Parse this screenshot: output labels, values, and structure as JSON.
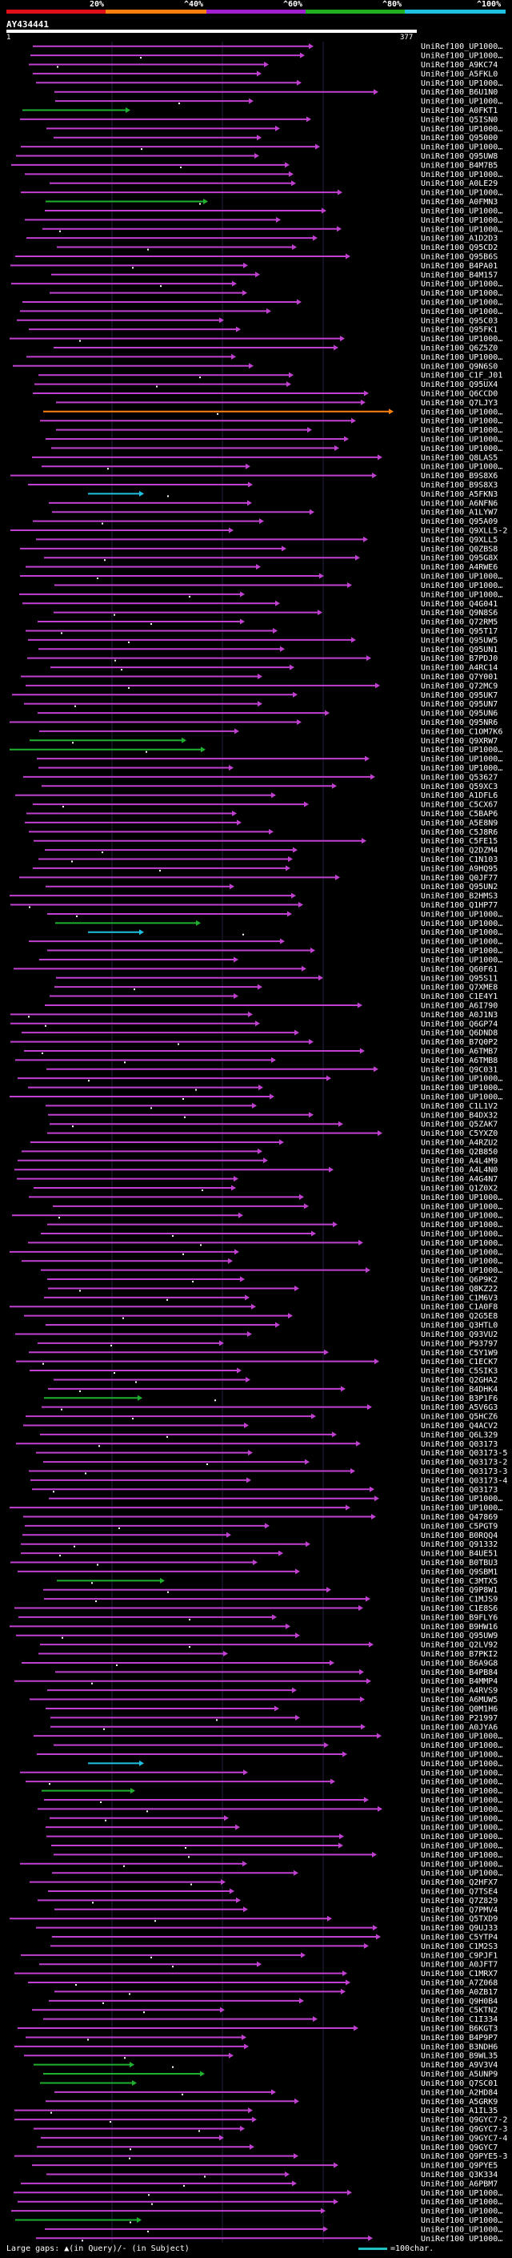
{
  "legend": {
    "labels": [
      "20%",
      "^40%",
      "^60%",
      "^80%",
      "^100%"
    ],
    "colors": [
      "#e0101a",
      "#ff8010",
      "#a020d0",
      "#20b020",
      "#20c0e0"
    ]
  },
  "query": {
    "title": "AY434441",
    "start": "1",
    "end": "377"
  },
  "hits": [
    "UniRef100_UP1000…",
    "UniRef100_UP1000…",
    "UniRef100_A9KC74",
    "UniRef100_A5FKL0",
    "UniRef100_UP1000…",
    "UniRef100_B6U1N0",
    "UniRef100_UP1000…",
    "UniRef100_A0FKT1",
    "UniRef100_Q5ISN0",
    "UniRef100_UP1000…",
    "UniRef100_Q95000",
    "UniRef100_UP1000…",
    "UniRef100_Q95UW8",
    "UniRef100_B4M7B5",
    "UniRef100_UP1000…",
    "UniRef100_A0LE29",
    "UniRef100_UP1000…",
    "UniRef100_A0FMN3",
    "UniRef100_UP1000…",
    "UniRef100_UP1000…",
    "UniRef100_UP1000…",
    "UniRef100_A1D2D3",
    "UniRef100_Q95CD2",
    "UniRef100_Q95B6S",
    "UniRef100_B4PA01",
    "UniRef100_B4M157",
    "UniRef100_UP1000…",
    "UniRef100_UP1000…",
    "UniRef100_UP1000…",
    "UniRef100_UP1000…",
    "UniRef100_Q95C03",
    "UniRef100_Q95FK1",
    "UniRef100_UP1000…",
    "UniRef100_Q6Z5Z0",
    "UniRef100_UP1000…",
    "UniRef100_Q9N6S0",
    "UniRef100_C1F_J01",
    "UniRef100_Q95UX4",
    "UniRef100_Q6CCD0",
    "UniRef100_Q7LJY3",
    "UniRef100_UP1000…",
    "UniRef100_UP1000…",
    "UniRef100_UP1000…",
    "UniRef100_UP1000…",
    "UniRef100_UP1000…",
    "UniRef100_Q8LAS5",
    "UniRef100_UP1000…",
    "UniRef100_B9S8X6",
    "UniRef100_B9S8X3",
    "UniRef100_A5FKN3",
    "UniRef100_A6NFN6",
    "UniRef100_A1LYW7",
    "UniRef100_Q95A09",
    "UniRef100_Q9XLL5-2",
    "UniRef100_Q9XLL5",
    "UniRef100_Q0ZBS8",
    "UniRef100_Q95G8X",
    "UniRef100_A4RWE6",
    "UniRef100_UP1000…",
    "UniRef100_UP1000…",
    "UniRef100_UP1000…",
    "UniRef100_Q4G041",
    "UniRef100_Q9N8S6",
    "UniRef100_Q72RM5",
    "UniRef100_Q95T17",
    "UniRef100_Q95UW5",
    "UniRef100_Q95UN1",
    "UniRef100_B7PDJ0",
    "UniRef100_A4RC14",
    "UniRef100_Q7Y001",
    "UniRef100_Q72MC9",
    "UniRef100_Q95UK7",
    "UniRef100_Q95UN7",
    "UniRef100_Q95UN6",
    "UniRef100_Q95NR6",
    "UniRef100_C1OM7K6",
    "UniRef100_Q9XRW7",
    "UniRef100_UP1000…",
    "UniRef100_UP1000…",
    "UniRef100_UP1000…",
    "UniRef100_Q53627",
    "UniRef100_Q59XC3",
    "UniRef100_A1DFL6",
    "UniRef100_C5CX67",
    "UniRef100_C5BAP6",
    "UniRef100_A5E8N9",
    "UniRef100_C5J8R6",
    "UniRef100_C5FE15",
    "UniRef100_Q2DZM4",
    "UniRef100_C1N103",
    "UniRef100_A9HQ95",
    "UniRef100_Q0JF77",
    "UniRef100_Q95UN2",
    "UniRef100_B2HMS3",
    "UniRef100_Q1HP77",
    "UniRef100_UP1000…",
    "UniRef100_UP1000…",
    "UniRef100_UP1000…",
    "UniRef100_UP1000…",
    "UniRef100_UP1000…",
    "UniRef100_UP1000…",
    "UniRef100_Q60F61",
    "UniRef100_Q95S11",
    "UniRef100_Q7XME8",
    "UniRef100_C1E4Y1",
    "UniRef100_A6I790",
    "UniRef100_A0J1N3",
    "UniRef100_Q6GP74",
    "UniRef100_Q6DND8",
    "UniRef100_B7Q0P2",
    "UniRef100_A6TMB7",
    "UniRef100_A6TMB8",
    "UniRef100_Q9C031",
    "UniRef100_UP1000…",
    "UniRef100_UP1000…",
    "UniRef100_UP1000…",
    "UniRef100_C1L1V2",
    "UniRef100_B4DX32",
    "UniRef100_Q5ZAK7",
    "UniRef100_C5YXZ0",
    "UniRef100_A4RZU2",
    "UniRef100_Q2B850",
    "UniRef100_A4L4M9",
    "UniRef100_A4L4N0",
    "UniRef100_A4G4N7",
    "UniRef100_Q1Z0X2",
    "UniRef100_UP1000…",
    "UniRef100_UP1000…",
    "UniRef100_UP1000…",
    "UniRef100_UP1000…",
    "UniRef100_UP1000…",
    "UniRef100_UP1000…",
    "UniRef100_UP1000…",
    "UniRef100_UP1000…",
    "UniRef100_UP1000…",
    "UniRef100_Q6P9K2",
    "UniRef100_Q8KZ22",
    "UniRef100_C1M6V3",
    "UniRef100_C1A0F8",
    "UniRef100_Q2G5E8",
    "UniRef100_Q3HTL0",
    "UniRef100_Q93VU2",
    "UniRef100_P93797",
    "UniRef100_C5Y1W9",
    "UniRef100_C1ECK7",
    "UniRef100_C5SIK3",
    "UniRef100_Q2GHA2",
    "UniRef100_B4DHK4",
    "UniRef100_B3P1F6",
    "UniRef100_A5V6G3",
    "UniRef100_Q5HCZ6",
    "UniRef100_Q4ACV2",
    "UniRef100_Q6L329",
    "UniRef100_Q03173",
    "UniRef100_Q03173-5",
    "UniRef100_Q03173-2",
    "UniRef100_Q03173-3",
    "UniRef100_Q03173-4",
    "UniRef100_Q03173",
    "UniRef100_UP1000…",
    "UniRef100_UP1000…",
    "UniRef100_Q47869",
    "UniRef100_C5PGT9",
    "UniRef100_B0RQQ4",
    "UniRef100_Q91332",
    "UniRef100_B4UE51",
    "UniRef100_B0TBU3",
    "UniRef100_Q9SBM1",
    "UniRef100_C3MTX5",
    "UniRef100_Q9P8W1",
    "UniRef100_C1MJS9",
    "UniRef100_C1E8S6",
    "UniRef100_B9FLY6",
    "UniRef100_B9HW16",
    "UniRef100_Q95UW9",
    "UniRef100_Q2LV92",
    "UniRef100_B7PKI2",
    "UniRef100_B6A9G8",
    "UniRef100_B4PB84",
    "UniRef100_B4MMP4",
    "UniRef100_A4RVS9",
    "UniRef100_A6MUW5",
    "UniRef100_Q0M1H6",
    "UniRef100_P21997",
    "UniRef100_A0JYA6",
    "UniRef100_UP1000…",
    "UniRef100_UP1000…",
    "UniRef100_UP1000…",
    "UniRef100_UP1000…",
    "UniRef100_UP1000…",
    "UniRef100_UP1000…",
    "UniRef100_UP1000…",
    "UniRef100_UP1000…",
    "UniRef100_UP1000…",
    "UniRef100_UP1000…",
    "UniRef100_UP1000…",
    "UniRef100_UP1000…",
    "UniRef100_UP1000…",
    "UniRef100_UP1000…",
    "UniRef100_UP1000…",
    "UniRef100_UP1000…",
    "UniRef100_Q2HFX7",
    "UniRef100_Q7TSE4",
    "UniRef100_Q7Z829",
    "UniRef100_Q7PMV4",
    "UniRef100_Q5TXD9",
    "UniRef100_Q9UJ33",
    "UniRef100_C5YTP4",
    "UniRef100_C1M2S3",
    "UniRef100_C9PJF1",
    "UniRef100_A0JFT7",
    "UniRef100_C1MRX7",
    "UniRef100_A7Z068",
    "UniRef100_A0ZB17",
    "UniRef100_Q9H0B4",
    "UniRef100_C5KTN2",
    "UniRef100_C1I334",
    "UniRef100_B6KGT3",
    "UniRef100_B4P9P7",
    "UniRef100_B3NDH6",
    "UniRef100_B9WL35",
    "UniRef100_A9V3V4",
    "UniRef100_A5UNP9",
    "UniRef100_Q7SC01",
    "UniRef100_A2HD84",
    "UniRef100_A5GRK9",
    "UniRef100_A1IL35",
    "UniRef100_Q9GYC7-2",
    "UniRef100_Q9GYC7-3",
    "UniRef100_Q9GYC7-4",
    "UniRef100_Q9GYC7",
    "UniRef100_Q9PYE5-3",
    "UniRef100_Q9PYE5",
    "UniRef100_Q3K334",
    "UniRef100_A6PBM7",
    "UniRef100_UP1000…",
    "UniRef100_UP1000…",
    "UniRef100_UP1000…",
    "UniRef100_UP1000…",
    "UniRef100_UP1000…",
    "UniRef100_UP1000…"
  ],
  "footer": {
    "gaps_text": "Large gaps: ▲(in Query)/- (in Subject)",
    "scale_text": "=100char."
  }
}
